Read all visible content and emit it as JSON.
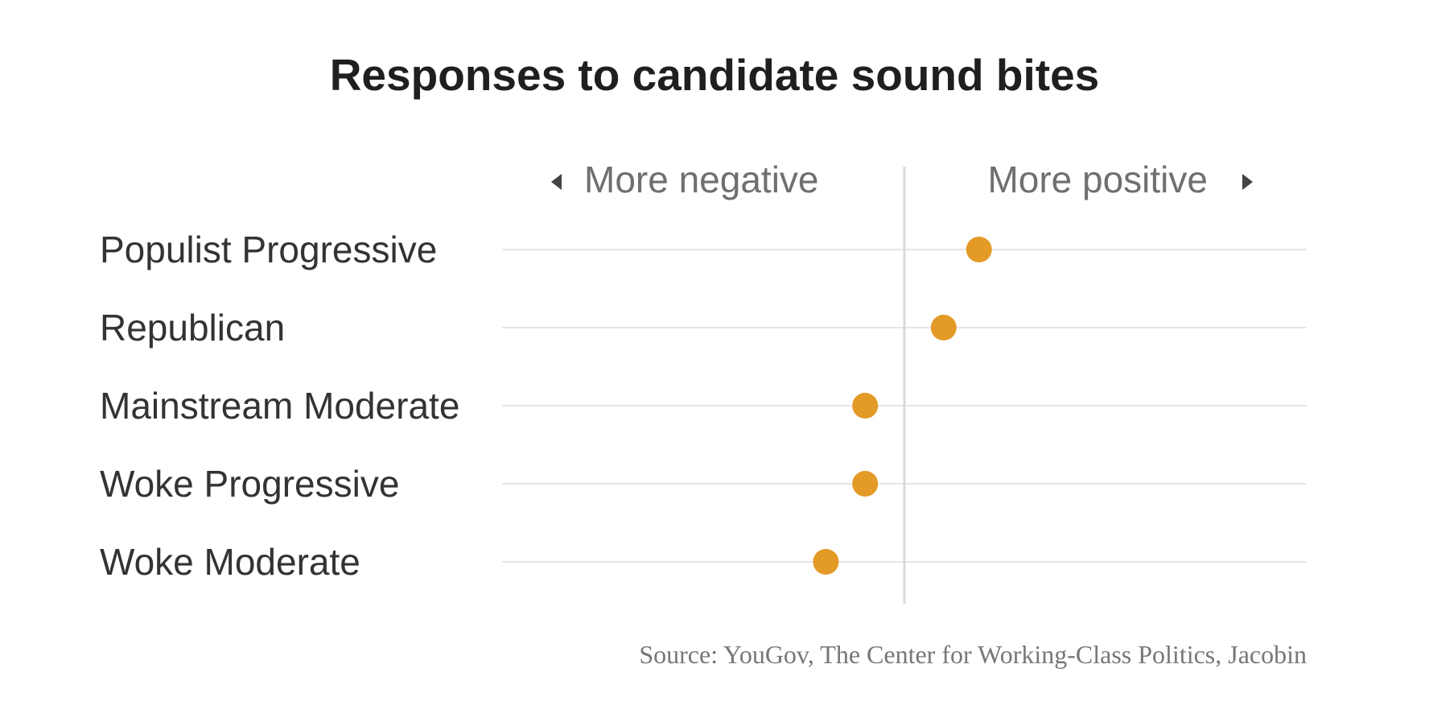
{
  "chart_data": {
    "type": "scatter",
    "title": "Responses to candidate sound bites",
    "axis_hints": {
      "negative": "More negative",
      "positive": "More positive"
    },
    "categories": [
      "Populist Progressive",
      "Republican",
      "Mainstream Moderate",
      "Woke Progressive",
      "Woke Moderate"
    ],
    "values": [
      0.19,
      0.1,
      -0.1,
      -0.1,
      -0.2
    ],
    "xlim": [
      -1,
      1
    ],
    "point_color": "#e39a27",
    "gridline_color": "#e6e6e6",
    "zero_line_color": "#d9d9d9",
    "source": "Source: YouGov, The Center for Working-Class Politics, Jacobin",
    "grid": true,
    "legend": "none"
  }
}
